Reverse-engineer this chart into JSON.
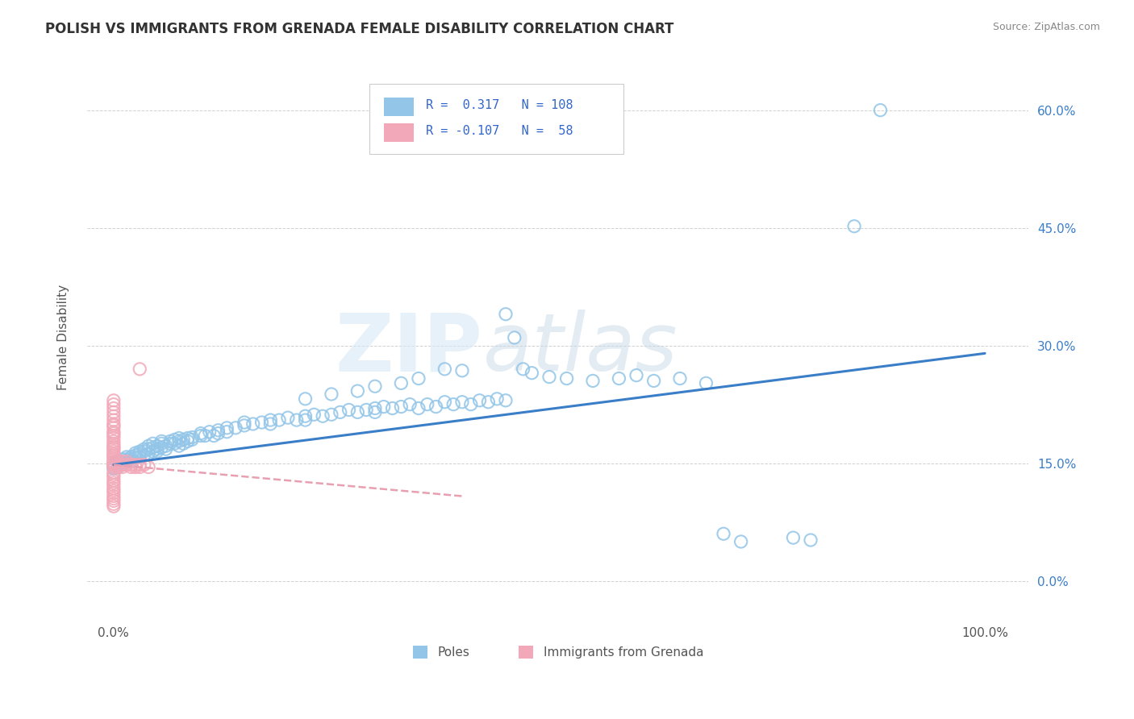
{
  "title": "POLISH VS IMMIGRANTS FROM GRENADA FEMALE DISABILITY CORRELATION CHART",
  "source": "Source: ZipAtlas.com",
  "ylabel": "Female Disability",
  "y_ticks": [
    "0.0%",
    "15.0%",
    "30.0%",
    "45.0%",
    "60.0%"
  ],
  "y_tick_vals": [
    0.0,
    0.15,
    0.3,
    0.45,
    0.6
  ],
  "x_ticks": [
    "0.0%",
    "100.0%"
  ],
  "x_tick_vals": [
    0.0,
    1.0
  ],
  "xlim": [
    -0.03,
    1.05
  ],
  "ylim": [
    -0.05,
    0.67
  ],
  "blue_color": "#92C5E8",
  "pink_color": "#F2A8B8",
  "trend_blue": "#3B7EC8",
  "trend_pink": "#E8A0B0",
  "watermark_zip": "ZIP",
  "watermark_atlas": "atlas",
  "legend_label1": "Poles",
  "legend_label2": "Immigrants from Grenada",
  "blue_trend_x": [
    0.0,
    1.0
  ],
  "blue_trend_y": [
    0.148,
    0.29
  ],
  "pink_trend_x": [
    0.0,
    0.4
  ],
  "pink_trend_y": [
    0.148,
    0.108
  ],
  "blue_points": [
    [
      0.0,
      0.148
    ],
    [
      0.0,
      0.145
    ],
    [
      0.0,
      0.15
    ],
    [
      0.0,
      0.143
    ],
    [
      0.005,
      0.148
    ],
    [
      0.005,
      0.152
    ],
    [
      0.005,
      0.145
    ],
    [
      0.01,
      0.15
    ],
    [
      0.01,
      0.155
    ],
    [
      0.01,
      0.148
    ],
    [
      0.015,
      0.155
    ],
    [
      0.015,
      0.152
    ],
    [
      0.015,
      0.158
    ],
    [
      0.02,
      0.158
    ],
    [
      0.02,
      0.155
    ],
    [
      0.02,
      0.152
    ],
    [
      0.025,
      0.16
    ],
    [
      0.025,
      0.157
    ],
    [
      0.025,
      0.163
    ],
    [
      0.03,
      0.162
    ],
    [
      0.03,
      0.165
    ],
    [
      0.03,
      0.158
    ],
    [
      0.035,
      0.165
    ],
    [
      0.035,
      0.16
    ],
    [
      0.035,
      0.168
    ],
    [
      0.04,
      0.162
    ],
    [
      0.04,
      0.168
    ],
    [
      0.04,
      0.172
    ],
    [
      0.045,
      0.165
    ],
    [
      0.045,
      0.17
    ],
    [
      0.045,
      0.175
    ],
    [
      0.05,
      0.168
    ],
    [
      0.05,
      0.172
    ],
    [
      0.05,
      0.165
    ],
    [
      0.055,
      0.17
    ],
    [
      0.055,
      0.175
    ],
    [
      0.055,
      0.178
    ],
    [
      0.06,
      0.172
    ],
    [
      0.06,
      0.168
    ],
    [
      0.065,
      0.175
    ],
    [
      0.065,
      0.178
    ],
    [
      0.07,
      0.175
    ],
    [
      0.07,
      0.18
    ],
    [
      0.075,
      0.178
    ],
    [
      0.075,
      0.182
    ],
    [
      0.075,
      0.172
    ],
    [
      0.08,
      0.18
    ],
    [
      0.08,
      0.175
    ],
    [
      0.085,
      0.182
    ],
    [
      0.085,
      0.178
    ],
    [
      0.09,
      0.183
    ],
    [
      0.09,
      0.18
    ],
    [
      0.1,
      0.185
    ],
    [
      0.1,
      0.188
    ],
    [
      0.105,
      0.185
    ],
    [
      0.11,
      0.19
    ],
    [
      0.115,
      0.185
    ],
    [
      0.12,
      0.192
    ],
    [
      0.12,
      0.188
    ],
    [
      0.13,
      0.195
    ],
    [
      0.13,
      0.19
    ],
    [
      0.14,
      0.195
    ],
    [
      0.15,
      0.198
    ],
    [
      0.15,
      0.202
    ],
    [
      0.16,
      0.2
    ],
    [
      0.17,
      0.202
    ],
    [
      0.18,
      0.205
    ],
    [
      0.18,
      0.2
    ],
    [
      0.19,
      0.205
    ],
    [
      0.2,
      0.208
    ],
    [
      0.21,
      0.205
    ],
    [
      0.22,
      0.21
    ],
    [
      0.22,
      0.205
    ],
    [
      0.23,
      0.212
    ],
    [
      0.24,
      0.21
    ],
    [
      0.25,
      0.212
    ],
    [
      0.26,
      0.215
    ],
    [
      0.27,
      0.218
    ],
    [
      0.28,
      0.215
    ],
    [
      0.29,
      0.218
    ],
    [
      0.3,
      0.22
    ],
    [
      0.3,
      0.215
    ],
    [
      0.31,
      0.222
    ],
    [
      0.32,
      0.22
    ],
    [
      0.33,
      0.222
    ],
    [
      0.34,
      0.225
    ],
    [
      0.35,
      0.22
    ],
    [
      0.36,
      0.225
    ],
    [
      0.37,
      0.222
    ],
    [
      0.38,
      0.228
    ],
    [
      0.39,
      0.225
    ],
    [
      0.4,
      0.228
    ],
    [
      0.41,
      0.225
    ],
    [
      0.42,
      0.23
    ],
    [
      0.43,
      0.228
    ],
    [
      0.44,
      0.232
    ],
    [
      0.45,
      0.23
    ],
    [
      0.45,
      0.34
    ],
    [
      0.46,
      0.31
    ],
    [
      0.47,
      0.27
    ],
    [
      0.48,
      0.265
    ],
    [
      0.5,
      0.26
    ],
    [
      0.52,
      0.258
    ],
    [
      0.38,
      0.27
    ],
    [
      0.4,
      0.268
    ],
    [
      0.35,
      0.258
    ],
    [
      0.33,
      0.252
    ],
    [
      0.3,
      0.248
    ],
    [
      0.28,
      0.242
    ],
    [
      0.25,
      0.238
    ],
    [
      0.22,
      0.232
    ],
    [
      0.55,
      0.255
    ],
    [
      0.58,
      0.258
    ],
    [
      0.6,
      0.262
    ],
    [
      0.62,
      0.255
    ],
    [
      0.65,
      0.258
    ],
    [
      0.68,
      0.252
    ],
    [
      0.7,
      0.06
    ],
    [
      0.72,
      0.05
    ],
    [
      0.8,
      0.052
    ],
    [
      0.78,
      0.055
    ],
    [
      0.85,
      0.452
    ],
    [
      0.88,
      0.6
    ]
  ],
  "pink_points": [
    [
      0.0,
      0.148
    ],
    [
      0.0,
      0.15
    ],
    [
      0.0,
      0.145
    ],
    [
      0.0,
      0.152
    ],
    [
      0.0,
      0.155
    ],
    [
      0.0,
      0.158
    ],
    [
      0.0,
      0.16
    ],
    [
      0.0,
      0.162
    ],
    [
      0.0,
      0.165
    ],
    [
      0.0,
      0.168
    ],
    [
      0.0,
      0.17
    ],
    [
      0.0,
      0.172
    ],
    [
      0.0,
      0.175
    ],
    [
      0.0,
      0.178
    ],
    [
      0.0,
      0.182
    ],
    [
      0.0,
      0.185
    ],
    [
      0.0,
      0.188
    ],
    [
      0.0,
      0.19
    ],
    [
      0.0,
      0.195
    ],
    [
      0.0,
      0.198
    ],
    [
      0.0,
      0.2
    ],
    [
      0.0,
      0.205
    ],
    [
      0.0,
      0.21
    ],
    [
      0.0,
      0.215
    ],
    [
      0.0,
      0.22
    ],
    [
      0.0,
      0.225
    ],
    [
      0.0,
      0.23
    ],
    [
      0.0,
      0.138
    ],
    [
      0.0,
      0.135
    ],
    [
      0.0,
      0.132
    ],
    [
      0.0,
      0.128
    ],
    [
      0.0,
      0.125
    ],
    [
      0.0,
      0.122
    ],
    [
      0.0,
      0.118
    ],
    [
      0.0,
      0.115
    ],
    [
      0.0,
      0.112
    ],
    [
      0.0,
      0.108
    ],
    [
      0.0,
      0.105
    ],
    [
      0.0,
      0.102
    ],
    [
      0.0,
      0.098
    ],
    [
      0.0,
      0.095
    ],
    [
      0.005,
      0.148
    ],
    [
      0.005,
      0.152
    ],
    [
      0.005,
      0.145
    ],
    [
      0.01,
      0.148
    ],
    [
      0.01,
      0.152
    ],
    [
      0.01,
      0.145
    ],
    [
      0.015,
      0.148
    ],
    [
      0.015,
      0.152
    ],
    [
      0.02,
      0.148
    ],
    [
      0.02,
      0.145
    ],
    [
      0.025,
      0.148
    ],
    [
      0.025,
      0.145
    ],
    [
      0.03,
      0.148
    ],
    [
      0.03,
      0.145
    ],
    [
      0.03,
      0.27
    ],
    [
      0.035,
      0.148
    ],
    [
      0.04,
      0.145
    ]
  ]
}
